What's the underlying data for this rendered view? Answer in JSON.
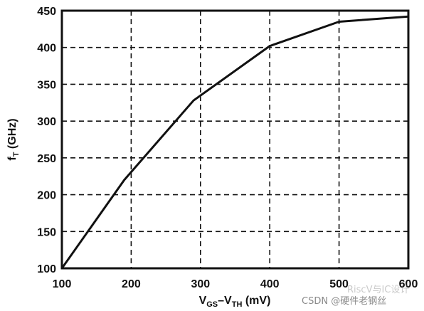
{
  "chart_data": {
    "type": "line",
    "x": [
      100,
      190,
      290,
      400,
      500,
      600
    ],
    "series": [
      {
        "values": [
          100,
          220,
          328,
          402,
          435,
          442
        ]
      }
    ],
    "xlim": [
      100,
      600
    ],
    "ylim": [
      100,
      450
    ],
    "xticks": [
      100,
      200,
      300,
      400,
      500,
      600
    ],
    "yticks": [
      100,
      150,
      200,
      250,
      300,
      350,
      400,
      450
    ],
    "ylabel_main": "f",
    "ylabel_sub": "T",
    "ylabel_unit": " (GHz)",
    "xlabel_parts": {
      "v1": "V",
      "s1": "GS",
      "dash": "–V",
      "s2": "TH",
      "unit": " (mV)"
    },
    "grid": true,
    "grid_style": "dashed",
    "line_color": "#111111"
  },
  "watermark": "CSDN @硬件老钢丝",
  "watermark_faint": "RiscV与IC设计"
}
